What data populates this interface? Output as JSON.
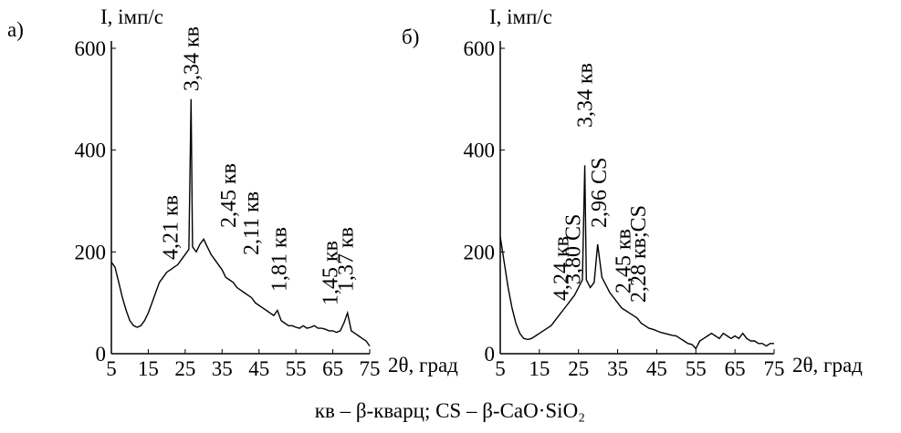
{
  "chart_data": [
    {
      "type": "line",
      "panel_label": "а)",
      "ylabel": "I, імп/с",
      "xlabel": "2θ, град",
      "xlim": [
        5,
        75
      ],
      "ylim": [
        0,
        600
      ],
      "xticks": [
        5,
        15,
        25,
        35,
        45,
        55,
        65,
        75
      ],
      "yticks": [
        0,
        200,
        400,
        600
      ],
      "color": "#000000",
      "x": [
        5,
        6,
        7,
        8,
        9,
        10,
        11,
        12,
        13,
        14,
        15,
        16,
        17,
        18,
        19,
        20,
        21,
        22,
        23,
        24,
        25,
        26,
        26.6,
        27,
        28,
        29,
        30,
        31,
        32,
        33,
        34,
        35,
        36,
        37,
        38,
        39,
        40,
        41,
        42,
        43,
        44,
        45,
        46,
        47,
        48,
        49,
        50,
        51,
        52,
        53,
        54,
        55,
        56,
        57,
        58,
        59,
        60,
        61,
        62,
        63,
        64,
        65,
        66,
        67,
        68,
        69,
        70,
        71,
        72,
        73,
        74,
        75
      ],
      "values": [
        180,
        170,
        140,
        110,
        85,
        65,
        55,
        52,
        55,
        65,
        80,
        100,
        120,
        140,
        150,
        160,
        165,
        170,
        175,
        185,
        195,
        205,
        500,
        210,
        200,
        215,
        225,
        210,
        195,
        185,
        175,
        165,
        150,
        145,
        140,
        130,
        125,
        120,
        115,
        110,
        100,
        95,
        90,
        85,
        80,
        75,
        85,
        65,
        60,
        55,
        55,
        52,
        50,
        55,
        50,
        52,
        55,
        50,
        50,
        48,
        45,
        45,
        42,
        45,
        60,
        80,
        45,
        40,
        35,
        30,
        25,
        15
      ],
      "annotations": [
        "4,21 кв",
        "3,34 кв",
        "2,45 кв",
        "2,11 кв",
        "1,81 кв",
        "1,45 кв",
        "1,37 кв"
      ]
    },
    {
      "type": "line",
      "panel_label": "б)",
      "ylabel": "I, імп/с",
      "xlabel": "2θ, град",
      "xlim": [
        5,
        75
      ],
      "ylim": [
        0,
        600
      ],
      "xticks": [
        5,
        15,
        25,
        35,
        45,
        55,
        65,
        75
      ],
      "yticks": [
        0,
        200,
        400,
        600
      ],
      "color": "#000000",
      "x": [
        5,
        6,
        7,
        8,
        9,
        10,
        11,
        12,
        13,
        14,
        15,
        16,
        17,
        18,
        19,
        20,
        21,
        22,
        23,
        24,
        25,
        26,
        26.6,
        27,
        28,
        29,
        29.9,
        31,
        32,
        33,
        34,
        35,
        36,
        37,
        38,
        39,
        40,
        41,
        42,
        43,
        44,
        45,
        46,
        47,
        48,
        49,
        50,
        51,
        52,
        53,
        54,
        55,
        56,
        57,
        58,
        59,
        60,
        61,
        62,
        63,
        64,
        65,
        66,
        67,
        68,
        69,
        70,
        71,
        72,
        73,
        74,
        75
      ],
      "values": [
        230,
        180,
        130,
        90,
        60,
        40,
        30,
        28,
        30,
        35,
        40,
        45,
        50,
        55,
        65,
        75,
        85,
        95,
        105,
        115,
        130,
        145,
        370,
        145,
        130,
        140,
        215,
        150,
        135,
        120,
        110,
        100,
        90,
        85,
        80,
        75,
        70,
        60,
        55,
        50,
        48,
        45,
        42,
        40,
        38,
        36,
        35,
        30,
        25,
        20,
        18,
        10,
        25,
        30,
        35,
        40,
        35,
        30,
        40,
        35,
        30,
        35,
        30,
        40,
        30,
        25,
        25,
        20,
        20,
        15,
        20,
        20
      ],
      "annotations": [
        "4,24 кв",
        "3,80 CS",
        "3,34 кв",
        "2,96 CS",
        "2,45 кв",
        "2,28 кв;CS"
      ]
    }
  ],
  "caption": "кв – β-кварц; CS – β-CaO·SiO₂"
}
